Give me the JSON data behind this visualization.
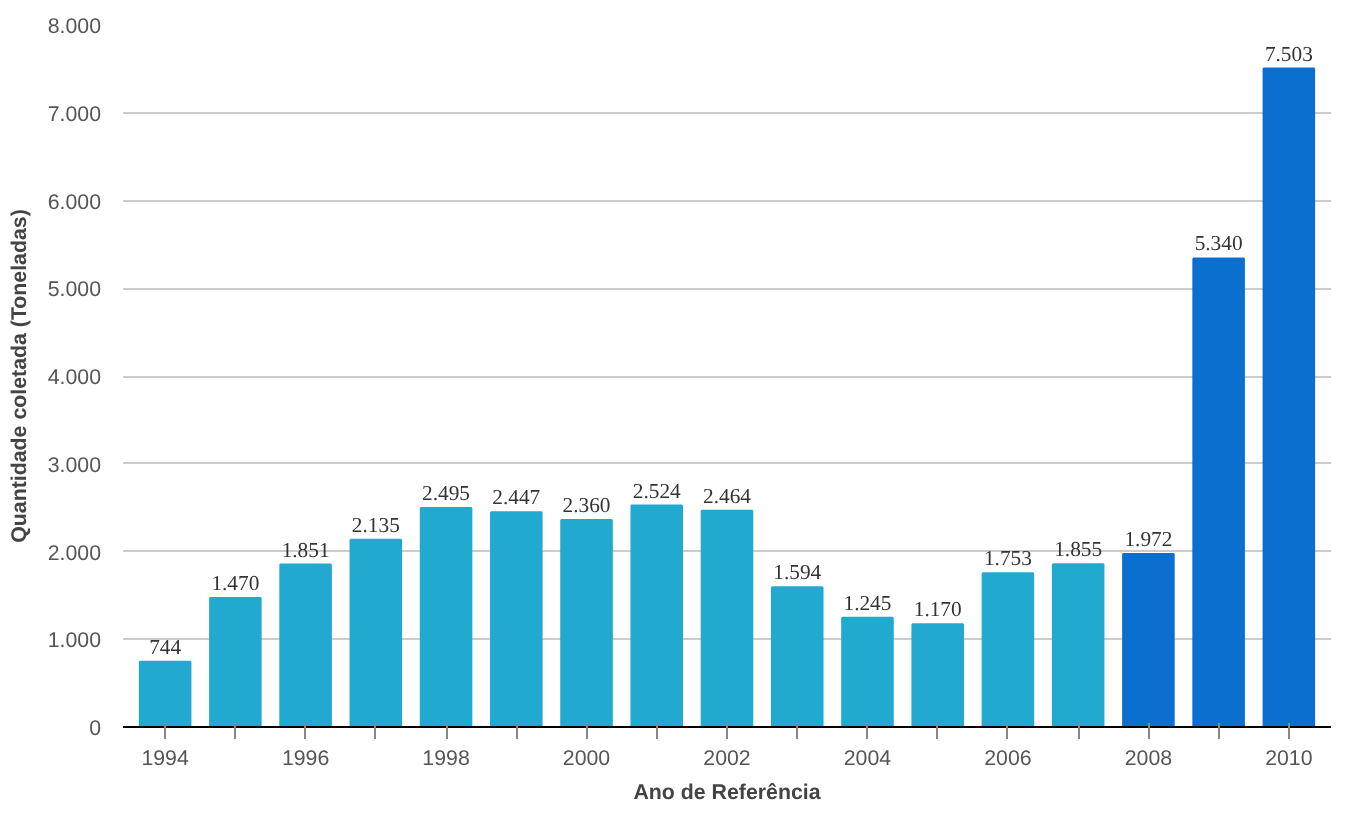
{
  "chart_data": {
    "type": "bar",
    "xlabel": "Ano de Referência",
    "ylabel": "Quantidade coletada (Toneladas)",
    "categories": [
      "1994",
      null,
      "1996",
      null,
      "1998",
      null,
      "2000",
      null,
      "2002",
      null,
      "2004",
      null,
      "2006",
      null,
      "2008",
      null,
      "2010"
    ],
    "values": [
      744,
      1470,
      1851,
      2135,
      2495,
      2447,
      2360,
      2524,
      2464,
      1594,
      1245,
      1170,
      1753,
      1855,
      1972,
      5340,
      7503
    ],
    "value_labels": [
      "744",
      "1.470",
      "1.851",
      "2.135",
      "2.495",
      "2.447",
      "2.360",
      "2.524",
      "2.464",
      "1.594",
      "1.245",
      "1.170",
      "1.753",
      "1.855",
      "1.972",
      "5.340",
      "7.503"
    ],
    "colors": [
      "#22a9cf",
      "#22a9cf",
      "#22a9cf",
      "#22a9cf",
      "#22a9cf",
      "#22a9cf",
      "#22a9cf",
      "#22a9cf",
      "#22a9cf",
      "#22a9cf",
      "#22a9cf",
      "#22a9cf",
      "#22a9cf",
      "#22a9cf",
      "#0b6fcf",
      "#0b6fcf",
      "#0b6fcf"
    ],
    "ylim": [
      0,
      8000
    ],
    "yticks": [
      0,
      {
        "value": 1000,
        "label": "1.000"
      },
      {
        "value": 2000,
        "label": "2.000"
      },
      {
        "value": 3000,
        "label": "3.000"
      },
      {
        "value": 4000,
        "label": "4.000"
      },
      {
        "value": 5000,
        "label": "5.000"
      },
      {
        "value": 6000,
        "label": "6.000"
      },
      {
        "value": 7000,
        "label": "7.000"
      },
      {
        "value": 8000,
        "label": "8.000"
      }
    ],
    "grid": "y"
  }
}
